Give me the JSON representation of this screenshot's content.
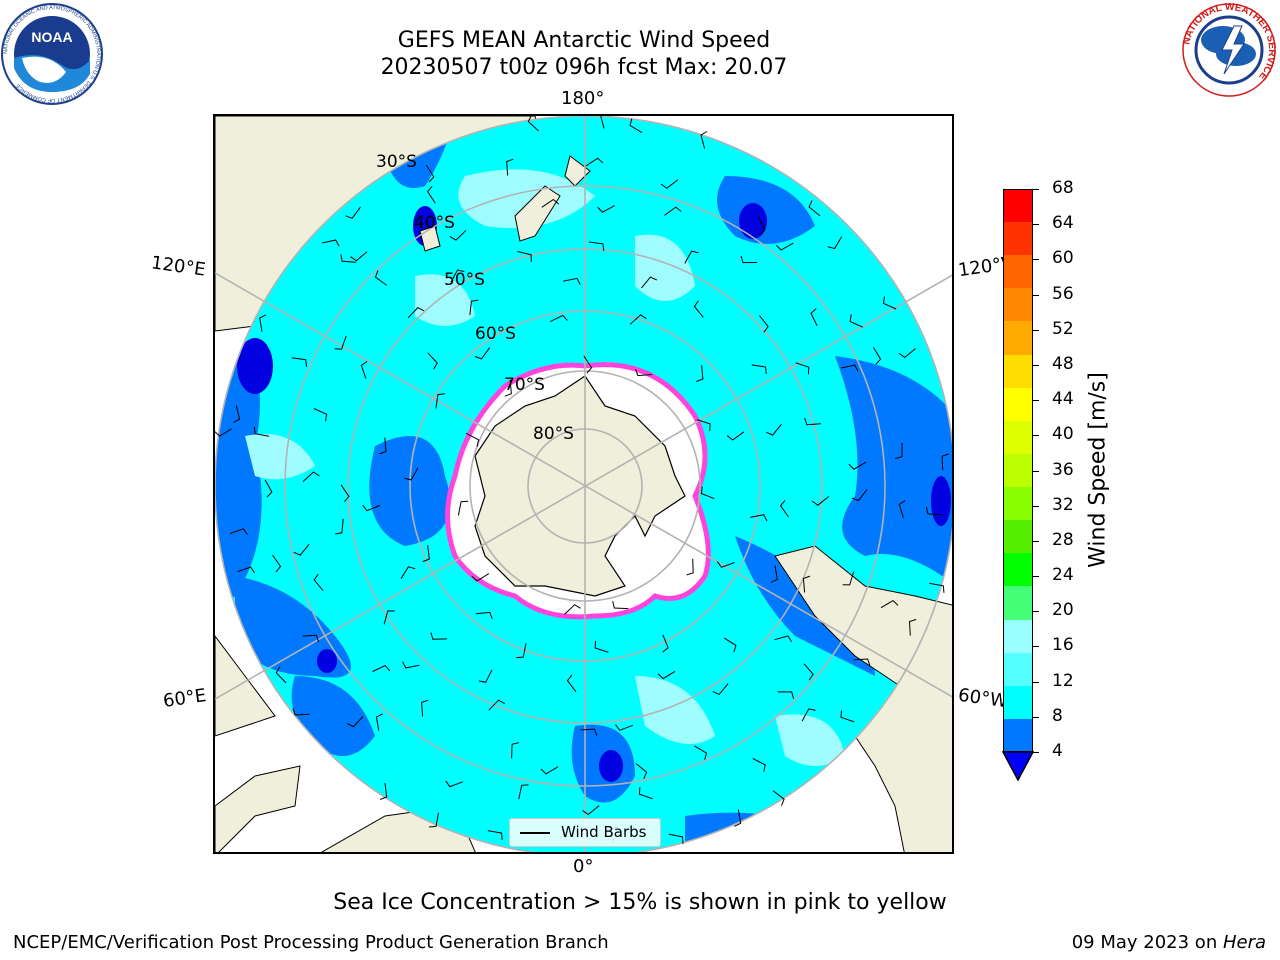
{
  "header": {
    "title": "GEFS MEAN Antarctic Wind Speed",
    "subtitle": "20230507 t00z 096h fcst   Max: 20.07"
  },
  "map": {
    "lon_labels": {
      "top": "180°",
      "bottom": "0°",
      "left_upper": "120°E",
      "left_lower": "60°E",
      "right_upper": "120°W",
      "right_lower": "60°W"
    },
    "lat_labels": [
      "30°S",
      "40°S",
      "50°S",
      "60°S",
      "70°S",
      "80°S"
    ],
    "legend_label": "Wind Barbs",
    "land_color": "#efefdb",
    "ocean_colors": {
      "low": "#0078ff",
      "mid": "#00ffff",
      "high": "#9ffdff",
      "darkest": "#0000e0"
    }
  },
  "colorbar": {
    "label": "Wind Speed [m/s]",
    "ticks": [
      "68",
      "64",
      "60",
      "56",
      "52",
      "48",
      "44",
      "40",
      "36",
      "32",
      "28",
      "24",
      "20",
      "16",
      "12",
      "8",
      "4"
    ],
    "colors": [
      "#ff0000",
      "#ff3300",
      "#ff6600",
      "#ff8800",
      "#ffaa00",
      "#ffdd00",
      "#ffff00",
      "#ddff00",
      "#bbff00",
      "#88ff00",
      "#55ee00",
      "#00ff00",
      "#44ff77",
      "#99ffff",
      "#55ffff",
      "#00ffff",
      "#0077ff"
    ],
    "extend_color": "#0000ff"
  },
  "caption": "Sea Ice Concentration > 15% is shown in pink to yellow",
  "footer": {
    "left": "NCEP/EMC/Verification Post Processing Product Generation Branch",
    "right_prefix": "09 May 2023 on ",
    "right_italic": "Hera"
  },
  "logos": {
    "noaa_text": "NOAA",
    "noaa_ring": "NATIONAL OCEANIC AND ATMOSPHERIC ADMINISTRATION  U.S. DEPARTMENT OF COMMERCE",
    "nws_ring": "NATIONAL WEATHER SERVICE"
  }
}
